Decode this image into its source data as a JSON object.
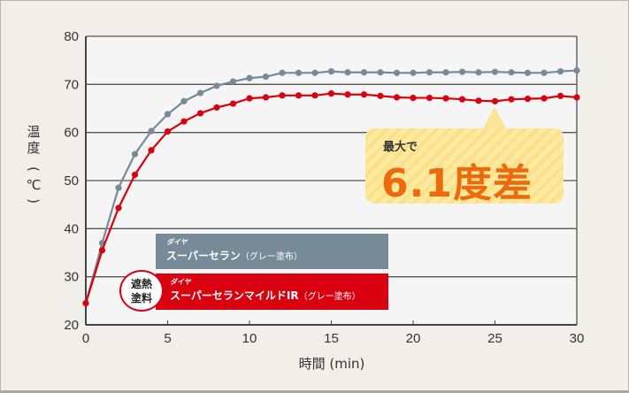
{
  "chart_data": {
    "type": "line",
    "title": "",
    "xlabel": "時間 (min)",
    "ylabel": "温度 (℃)",
    "xlim": [
      0,
      30
    ],
    "ylim": [
      20,
      80
    ],
    "x_ticks": [
      0,
      5,
      10,
      15,
      20,
      25,
      30
    ],
    "y_ticks": [
      20,
      30,
      40,
      50,
      60,
      70,
      80
    ],
    "grid": "horizontal",
    "x": [
      0,
      1,
      2,
      3,
      4,
      5,
      6,
      7,
      8,
      9,
      10,
      11,
      12,
      13,
      14,
      15,
      16,
      17,
      18,
      19,
      20,
      21,
      22,
      23,
      24,
      25,
      26,
      27,
      28,
      29,
      30
    ],
    "series": [
      {
        "name": "ダイヤ スーパーセラン（グレー塗布）",
        "color": "#778a97",
        "values": [
          24.5,
          37.0,
          48.5,
          55.5,
          60.3,
          63.8,
          66.5,
          68.2,
          69.7,
          70.6,
          71.3,
          71.6,
          72.4,
          72.4,
          72.4,
          72.7,
          72.5,
          72.5,
          72.5,
          72.4,
          72.4,
          72.5,
          72.5,
          72.6,
          72.5,
          72.6,
          72.5,
          72.4,
          72.4,
          72.7,
          72.9
        ]
      },
      {
        "name": "ダイヤ スーパーセランマイルドIR（グレー塗布）",
        "color": "#d9000f",
        "values": [
          24.5,
          35.5,
          44.3,
          51.2,
          56.3,
          60.2,
          62.3,
          64.0,
          65.2,
          66.0,
          67.1,
          67.3,
          67.7,
          67.7,
          67.7,
          68.1,
          67.9,
          67.9,
          67.6,
          67.3,
          67.2,
          67.2,
          67.1,
          66.9,
          66.6,
          66.5,
          66.9,
          67.0,
          67.1,
          67.6,
          67.3
        ]
      }
    ],
    "annotations": [
      {
        "text": "最大で 6.1度差",
        "x": 25,
        "note": "callout pointing between curves"
      }
    ]
  },
  "axis": {
    "y_label_chars": [
      "温",
      "度",
      "(",
      "℃",
      ")"
    ],
    "x_label": "時間 (min)"
  },
  "legend": {
    "gray": {
      "brand": "ダイヤ",
      "product": "スーパーセラン",
      "suffix": "（グレー塗布）"
    },
    "red": {
      "brand": "ダイヤ",
      "product": "スーパーセランマイルドIR",
      "suffix": "（グレー塗布）"
    },
    "badge_line1": "遮熱",
    "badge_line2": "塗料"
  },
  "callout": {
    "sub": "最大で",
    "main": "6.1度差"
  }
}
